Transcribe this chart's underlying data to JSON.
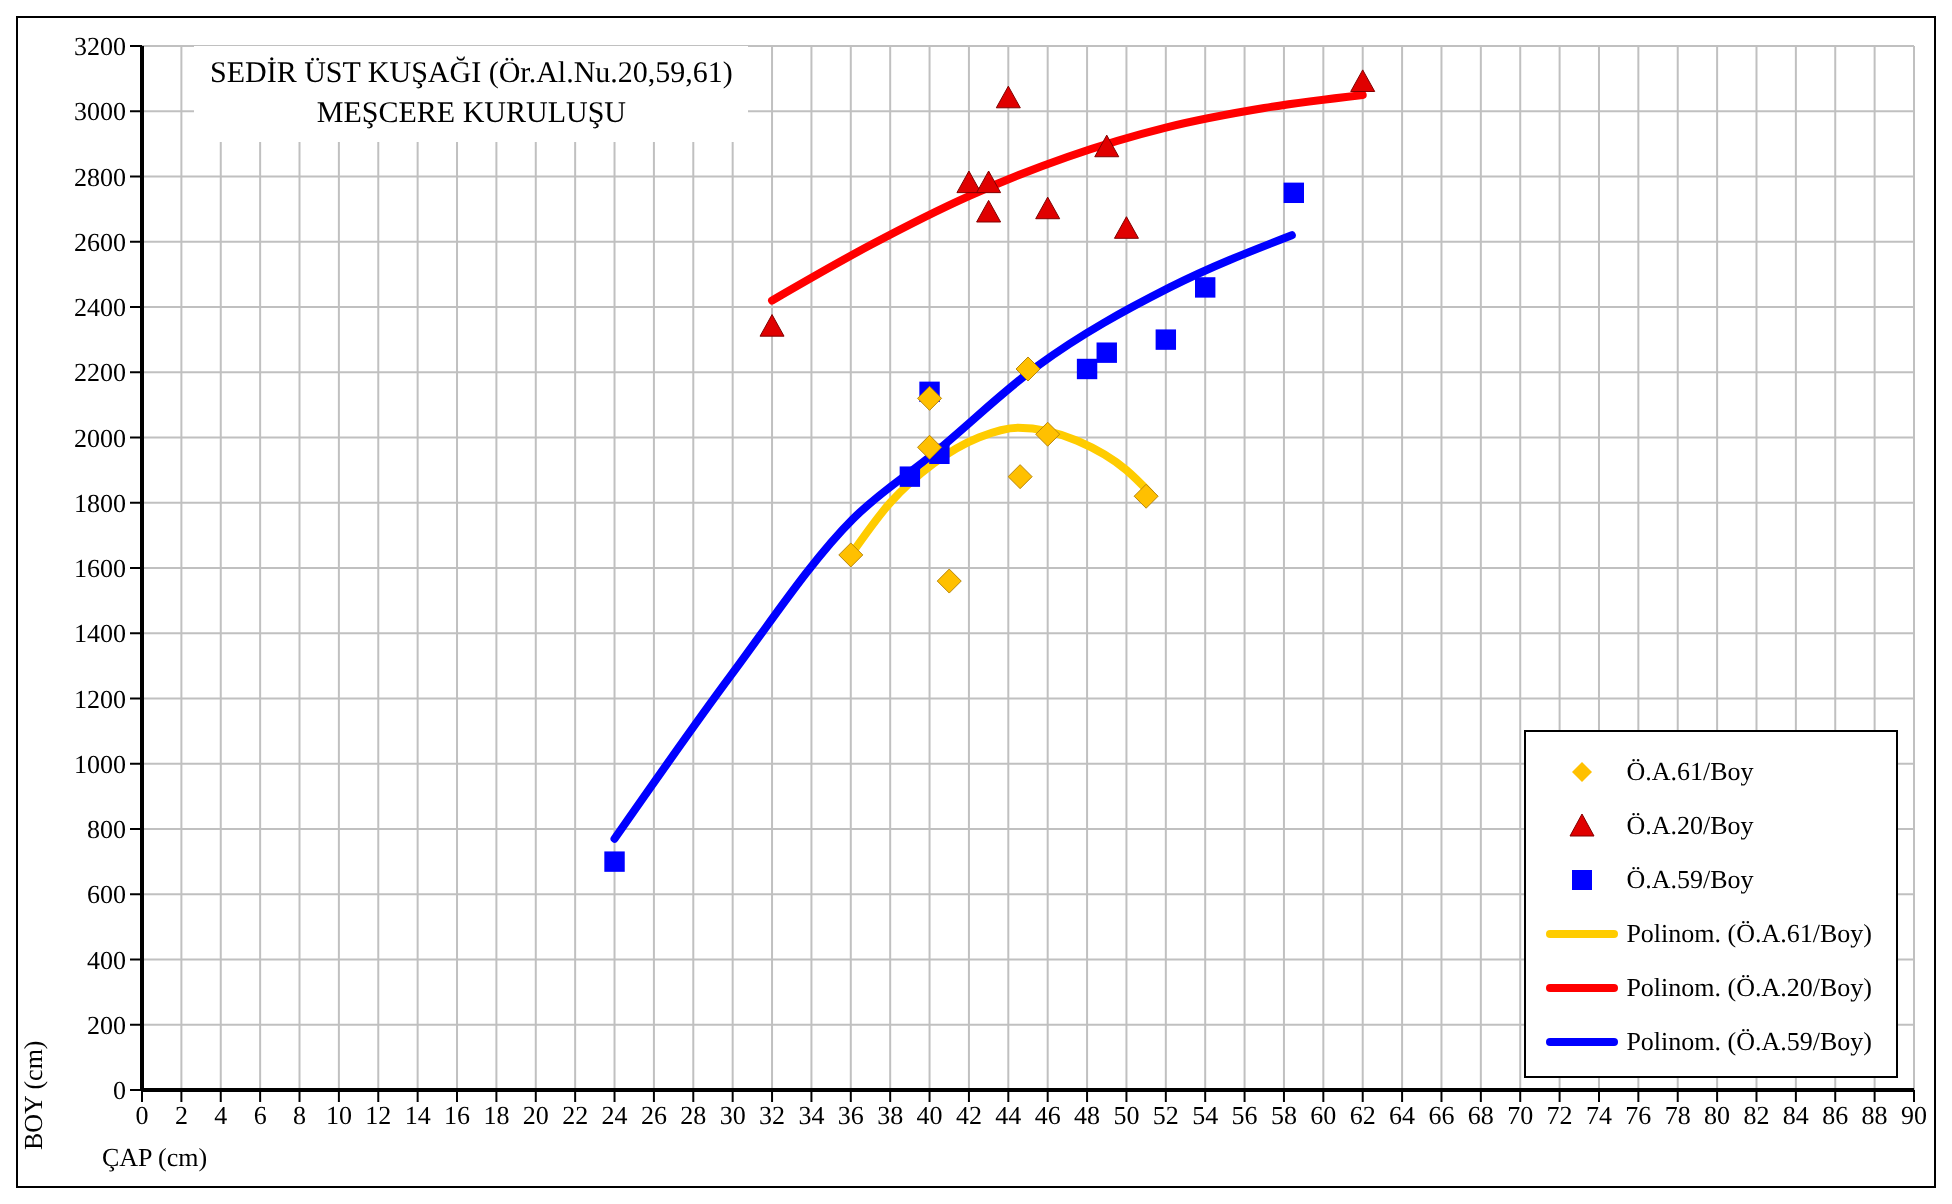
{
  "chart_data": {
    "type": "scatter",
    "title": "SEDİR ÜST KUŞAĞI (Ör.Al.Nu.20,59,61)",
    "subtitle": "MEŞCERE KURULUŞU",
    "xlabel": "ÇAP (cm)",
    "ylabel": "BOY (cm)",
    "xlim": [
      0,
      90
    ],
    "xticks": [
      0,
      2,
      4,
      6,
      8,
      10,
      12,
      14,
      16,
      18,
      20,
      22,
      24,
      26,
      28,
      30,
      32,
      34,
      36,
      38,
      40,
      42,
      44,
      46,
      48,
      50,
      52,
      54,
      56,
      58,
      60,
      62,
      64,
      66,
      68,
      70,
      72,
      74,
      76,
      78,
      80,
      82,
      84,
      86,
      88,
      90
    ],
    "ylim": [
      0,
      3200
    ],
    "yticks": [
      0,
      200,
      400,
      600,
      800,
      1000,
      1200,
      1400,
      1600,
      1800,
      2000,
      2200,
      2400,
      2600,
      2800,
      3000,
      3200
    ],
    "grid": true,
    "legend": "bottom right",
    "series": [
      {
        "name": "Ö.A.61/Boy",
        "type": "scatter",
        "marker": "diamond",
        "color": "#ffc000",
        "x": [
          36,
          40,
          40,
          41,
          45,
          46,
          44.6,
          51
        ],
        "values": [
          1640,
          2120,
          1970,
          1560,
          2210,
          2010,
          1880,
          1820
        ]
      },
      {
        "name": "Ö.A.20/Boy",
        "type": "scatter",
        "marker": "triangle",
        "color": "#e00000",
        "x": [
          32,
          44,
          42,
          43,
          43,
          46,
          49,
          50,
          62
        ],
        "values": [
          2340,
          3040,
          2780,
          2780,
          2690,
          2700,
          2890,
          2640,
          3090
        ]
      },
      {
        "name": "Ö.A.59/Boy",
        "type": "scatter",
        "marker": "square",
        "color": "#0000ff",
        "x": [
          24,
          40,
          39,
          40.5,
          48,
          49,
          52,
          54,
          58.5
        ],
        "values": [
          700,
          2140,
          1880,
          1950,
          2210,
          2260,
          2300,
          2460,
          2750
        ]
      },
      {
        "name": "Polinom. (Ö.A.61/Boy)",
        "type": "line",
        "marker": "none",
        "color": "#ffcc00",
        "x": [
          36,
          38,
          40.2,
          42.5,
          44.5,
          47.5,
          50,
          51.2
        ],
        "values": [
          1640,
          1800,
          1920,
          2000,
          2030,
          1990,
          1900,
          1830
        ]
      },
      {
        "name": "Polinom. (Ö.A.20/Boy)",
        "type": "line",
        "marker": "none",
        "color": "#ff0000",
        "x": [
          32,
          37,
          42,
          47,
          52,
          57,
          62
        ],
        "values": [
          2420,
          2590,
          2740,
          2860,
          2950,
          3010,
          3050
        ]
      },
      {
        "name": "Polinom. (Ö.A.59/Boy)",
        "type": "line",
        "marker": "none",
        "color": "#0000ff",
        "x": [
          24,
          29.9,
          36.1,
          40.2,
          45.5,
          52.2,
          58.4
        ],
        "values": [
          770,
          1270,
          1750,
          1950,
          2220,
          2460,
          2620
        ]
      }
    ]
  }
}
